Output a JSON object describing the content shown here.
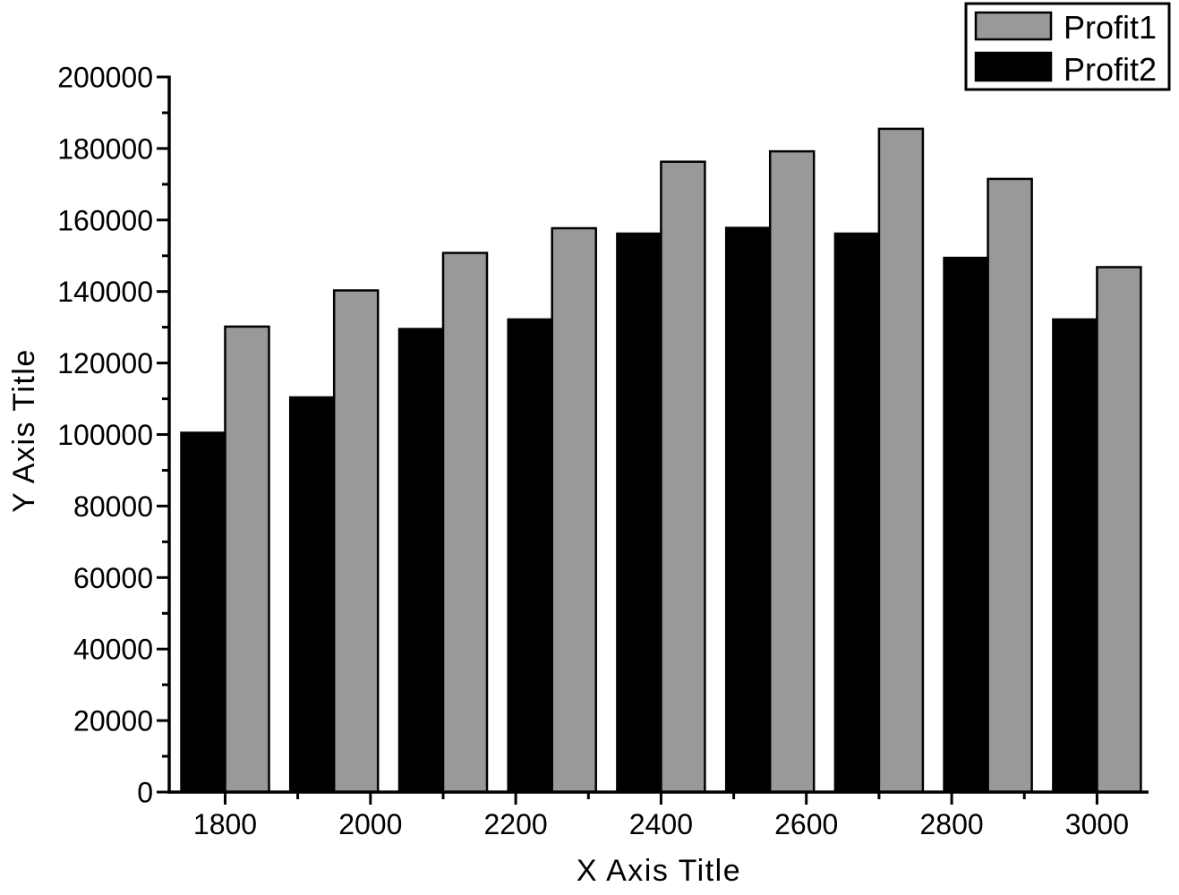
{
  "chart_data": {
    "type": "bar",
    "title": "",
    "xlabel": "X Axis Title",
    "ylabel": "Y Axis Title",
    "x": [
      1800,
      1950,
      2100,
      2250,
      2400,
      2550,
      2700,
      2850,
      3000
    ],
    "series": [
      {
        "name": "Profit1",
        "color": "#999999",
        "slot": "right",
        "values": [
          130200,
          140300,
          150800,
          157700,
          176300,
          179200,
          185500,
          171500,
          146800
        ]
      },
      {
        "name": "Profit2",
        "color": "#000000",
        "slot": "left",
        "values": [
          100500,
          110400,
          129500,
          132200,
          156200,
          157800,
          156200,
          149400,
          132200
        ]
      }
    ],
    "bar_outline_color": "#000000",
    "background_color": "#ffffff",
    "axis_color": "#000000",
    "xlim": [
      1723,
      3071
    ],
    "ylim": [
      0,
      200000
    ],
    "x_major_ticks": {
      "values": [
        1800,
        2000,
        2200,
        2400,
        2600,
        2800,
        3000
      ],
      "labels": [
        "1800",
        "2000",
        "2200",
        "2400",
        "2600",
        "2800",
        "3000"
      ]
    },
    "x_minor_ticks": [
      1900,
      2100,
      2300,
      2500,
      2700,
      2900
    ],
    "y_major_ticks": {
      "values": [
        0,
        20000,
        40000,
        60000,
        80000,
        100000,
        120000,
        140000,
        160000,
        180000,
        200000
      ],
      "labels": [
        "0",
        "20000",
        "40000",
        "60000",
        "80000",
        "100000",
        "120000",
        "140000",
        "160000",
        "180000",
        "200000"
      ]
    },
    "y_minor_ticks": [
      10000,
      30000,
      50000,
      70000,
      90000,
      110000,
      130000,
      150000,
      170000,
      190000
    ],
    "grid": false,
    "legend": {
      "position": "top-right"
    }
  }
}
